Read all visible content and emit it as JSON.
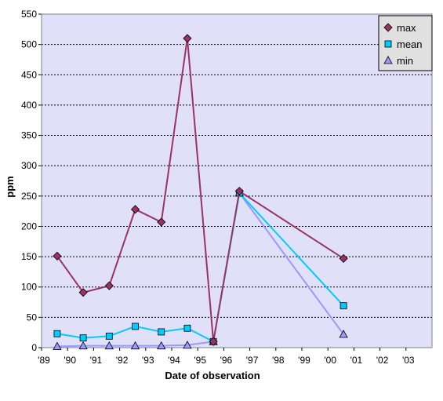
{
  "chart_data": {
    "type": "line",
    "title": "",
    "xlabel": "Date of observation",
    "ylabel": "ppm",
    "xlim": [
      1989,
      2004
    ],
    "ylim": [
      0,
      550
    ],
    "x_ticks": [
      "'89",
      "'90",
      "'91",
      "'92",
      "'93",
      "'94",
      "'95",
      "'96",
      "'97",
      "'98",
      "'99",
      "'00",
      "'01",
      "'02",
      "'03"
    ],
    "y_ticks": [
      0,
      50,
      100,
      150,
      200,
      250,
      300,
      350,
      400,
      450,
      500,
      550
    ],
    "grid": "horizontal dashed",
    "legend_placement": "top-right",
    "series": [
      {
        "name": "max",
        "color": "#993366",
        "marker": "diamond",
        "x": [
          1989.6,
          1990.6,
          1991.6,
          1992.6,
          1993.6,
          1994.6,
          1995.6,
          1996.6,
          2000.6
        ],
        "values": [
          151,
          91,
          102,
          228,
          207,
          510,
          10,
          258,
          147
        ]
      },
      {
        "name": "mean",
        "color": "#00CCFF",
        "marker": "square",
        "x": [
          1989.6,
          1990.6,
          1991.6,
          1992.6,
          1993.6,
          1994.6,
          1995.6,
          1996.6,
          2000.6
        ],
        "values": [
          23,
          16,
          19,
          35,
          26,
          32,
          10,
          255,
          69
        ]
      },
      {
        "name": "min",
        "color": "#9999FF",
        "marker": "triangle",
        "x": [
          1989.6,
          1990.6,
          1991.6,
          1992.6,
          1993.6,
          1994.6,
          1995.6,
          1996.6,
          2000.6
        ],
        "values": [
          2,
          3,
          3,
          3,
          3,
          4,
          10,
          255,
          22
        ]
      }
    ]
  },
  "colors": {
    "plot_background": "#E0E0F8",
    "gridline": "#000000",
    "legend_background": "#E0E0E0"
  }
}
